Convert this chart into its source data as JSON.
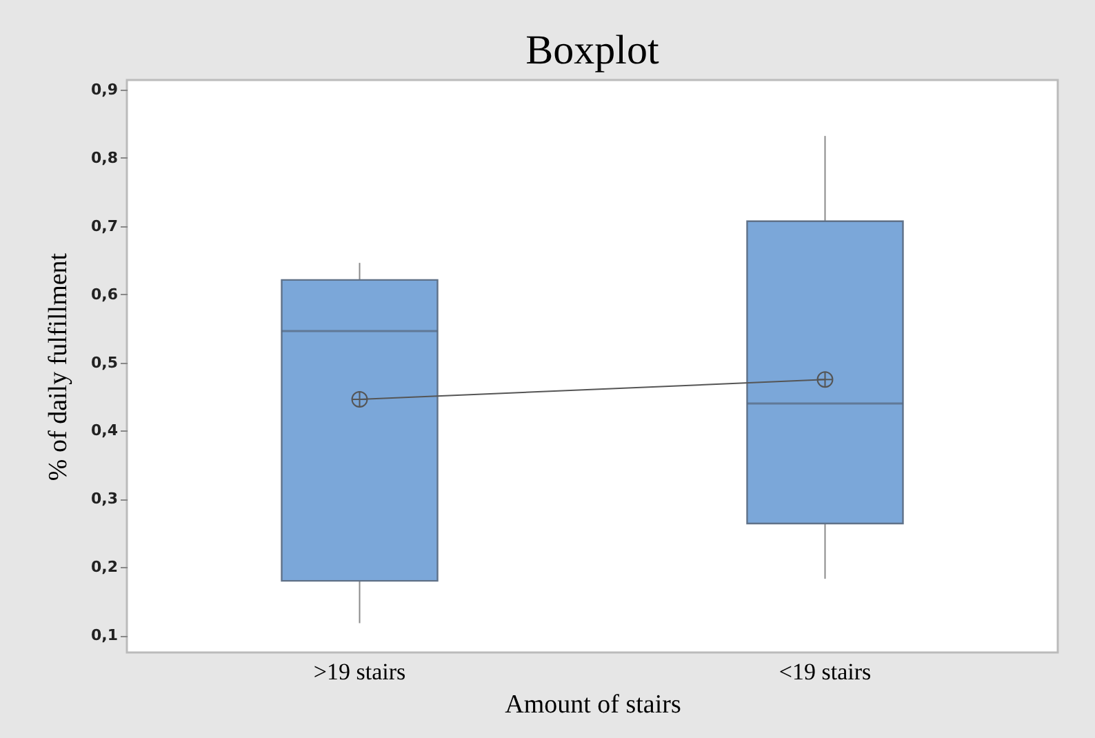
{
  "chart_data": {
    "type": "box",
    "title": "Boxplot",
    "xlabel": "Amount of stairs",
    "ylabel": "% of daily fulfillment",
    "categories": [
      ">19 stairs",
      "<19 stairs"
    ],
    "color": "#7ba7d9",
    "boxes": [
      {
        "low": 0.118,
        "q1": 0.18,
        "median": 0.546,
        "q3": 0.621,
        "high": 0.646,
        "mean": 0.446
      },
      {
        "low": 0.183,
        "q1": 0.264,
        "median": 0.44,
        "q3": 0.707,
        "high": 0.832,
        "mean": 0.475
      }
    ],
    "series": [
      {
        "type": "line",
        "color": "#555555",
        "values": [
          0.446,
          0.475
        ]
      }
    ],
    "ylim": [
      0.075,
      0.914
    ],
    "yticks": [
      {
        "value": 0.1,
        "label": "0,1"
      },
      {
        "value": 0.2,
        "label": "0,2"
      },
      {
        "value": 0.3,
        "label": "0,3"
      },
      {
        "value": 0.4,
        "label": "0,4"
      },
      {
        "value": 0.5,
        "label": "0,5"
      },
      {
        "value": 0.6,
        "label": "0,6"
      },
      {
        "value": 0.7,
        "label": "0,7"
      },
      {
        "value": 0.8,
        "label": "0,8"
      },
      {
        "value": 0.9,
        "label": "0,9"
      }
    ]
  }
}
